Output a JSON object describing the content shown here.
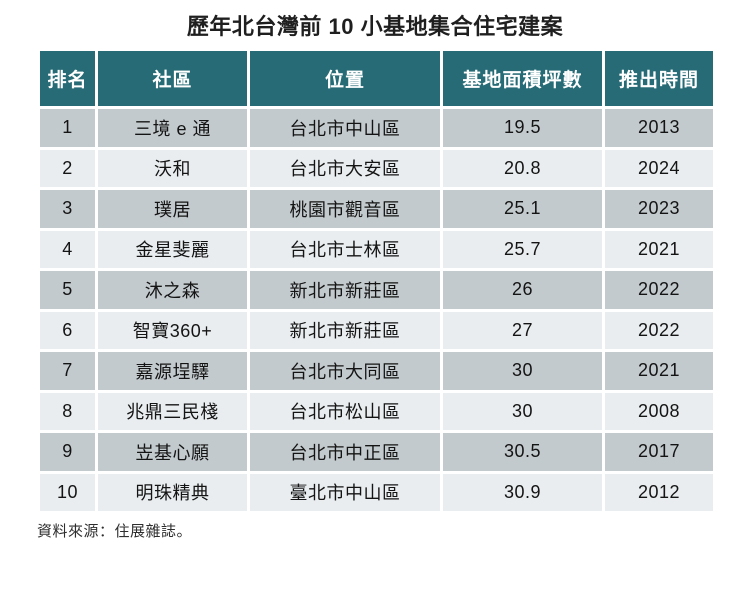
{
  "title": "歷年北台灣前 10 小基地集合住宅建案",
  "source": "資料來源：住展雜誌。",
  "colors": {
    "header_bg": "#266b76",
    "header_text": "#ffffff",
    "row_odd_bg": "#c3cacd",
    "row_even_bg": "#e9edef",
    "grid_line": "#ffffff",
    "body_text": "#141414"
  },
  "chart_data": {
    "type": "table",
    "title": "歷年北台灣前 10 小基地集合住宅建案",
    "columns": [
      "排名",
      "社區",
      "位置",
      "基地面積坪數",
      "推出時間"
    ],
    "rows": [
      [
        "1",
        "三境 e 通",
        "台北市中山區",
        "19.5",
        "2013"
      ],
      [
        "2",
        "沃和",
        "台北市大安區",
        "20.8",
        "2024"
      ],
      [
        "3",
        "璞居",
        "桃園市觀音區",
        "25.1",
        "2023"
      ],
      [
        "4",
        "金星斐麗",
        "台北市士林區",
        "25.7",
        "2021"
      ],
      [
        "5",
        "沐之森",
        "新北市新莊區",
        "26",
        "2022"
      ],
      [
        "6",
        "智寶360+",
        "新北市新莊區",
        "27",
        "2022"
      ],
      [
        "7",
        "嘉源埕驛",
        "台北市大同區",
        "30",
        "2021"
      ],
      [
        "8",
        "兆鼎三民棧",
        "台北市松山區",
        "30",
        "2008"
      ],
      [
        "9",
        "岦基心願",
        "台北市中正區",
        "30.5",
        "2017"
      ],
      [
        "10",
        "明珠精典",
        "臺北市中山區",
        "30.9",
        "2012"
      ]
    ],
    "source_note": "資料來源：住展雜誌。",
    "legend_position": "none",
    "grid": true
  }
}
